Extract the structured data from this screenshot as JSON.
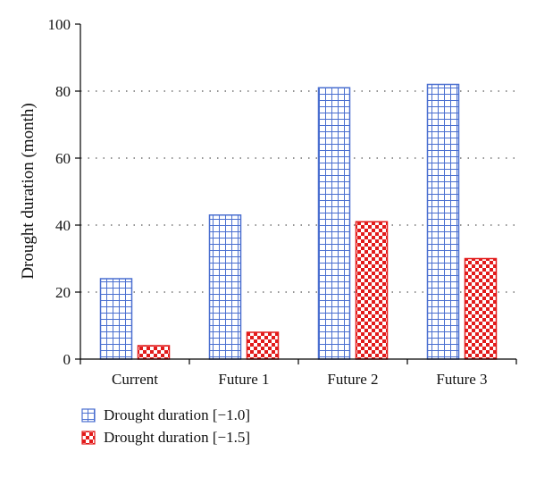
{
  "chart_data": {
    "type": "bar",
    "title": "",
    "xlabel": "",
    "ylabel": "Drought duration (month)",
    "categories": [
      "Current",
      "Future 1",
      "Future 2",
      "Future 3"
    ],
    "series": [
      {
        "name": "Drought duration [−1.0]",
        "values": [
          24,
          43,
          81,
          82
        ],
        "color": "#4a6fd0",
        "pattern": "grid"
      },
      {
        "name": "Drought duration [−1.5]",
        "values": [
          4,
          8,
          41,
          30
        ],
        "color": "#e21b1b",
        "pattern": "checker"
      }
    ],
    "ylim": [
      0,
      100
    ],
    "yticks": [
      "0",
      "20",
      "40",
      "60",
      "80",
      "100"
    ],
    "grid": "horizontal dotted",
    "legend_position": "bottom-left"
  }
}
